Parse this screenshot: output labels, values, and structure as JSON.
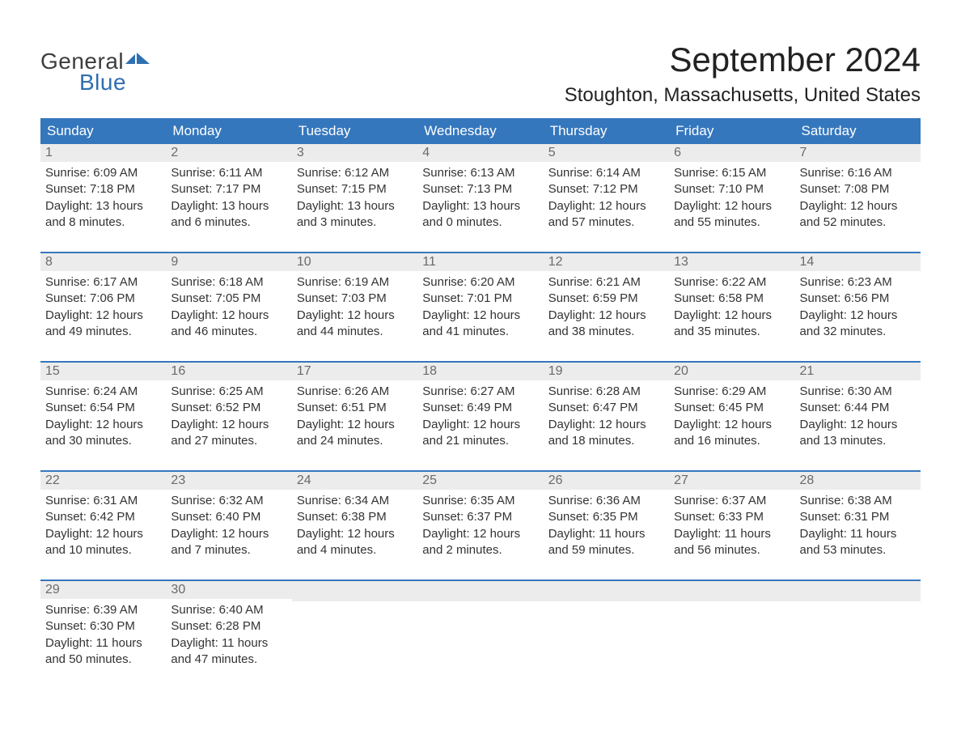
{
  "logo": {
    "word1": "General",
    "word2": "Blue"
  },
  "title": "September 2024",
  "location": "Stoughton, Massachusetts, United States",
  "colors": {
    "header_bg": "#3577bd",
    "header_text": "#ffffff",
    "daynum_bg": "#ececec",
    "daynum_text": "#6a6a6a",
    "body_text": "#333333",
    "logo_gray": "#3d3d3d",
    "logo_blue": "#2f6fb0",
    "page_bg": "#ffffff"
  },
  "daysOfWeek": [
    "Sunday",
    "Monday",
    "Tuesday",
    "Wednesday",
    "Thursday",
    "Friday",
    "Saturday"
  ],
  "startWeekday": 0,
  "cells": [
    {
      "n": "1",
      "sunrise": "Sunrise: 6:09 AM",
      "sunset": "Sunset: 7:18 PM",
      "d1": "Daylight: 13 hours",
      "d2": "and 8 minutes."
    },
    {
      "n": "2",
      "sunrise": "Sunrise: 6:11 AM",
      "sunset": "Sunset: 7:17 PM",
      "d1": "Daylight: 13 hours",
      "d2": "and 6 minutes."
    },
    {
      "n": "3",
      "sunrise": "Sunrise: 6:12 AM",
      "sunset": "Sunset: 7:15 PM",
      "d1": "Daylight: 13 hours",
      "d2": "and 3 minutes."
    },
    {
      "n": "4",
      "sunrise": "Sunrise: 6:13 AM",
      "sunset": "Sunset: 7:13 PM",
      "d1": "Daylight: 13 hours",
      "d2": "and 0 minutes."
    },
    {
      "n": "5",
      "sunrise": "Sunrise: 6:14 AM",
      "sunset": "Sunset: 7:12 PM",
      "d1": "Daylight: 12 hours",
      "d2": "and 57 minutes."
    },
    {
      "n": "6",
      "sunrise": "Sunrise: 6:15 AM",
      "sunset": "Sunset: 7:10 PM",
      "d1": "Daylight: 12 hours",
      "d2": "and 55 minutes."
    },
    {
      "n": "7",
      "sunrise": "Sunrise: 6:16 AM",
      "sunset": "Sunset: 7:08 PM",
      "d1": "Daylight: 12 hours",
      "d2": "and 52 minutes."
    },
    {
      "n": "8",
      "sunrise": "Sunrise: 6:17 AM",
      "sunset": "Sunset: 7:06 PM",
      "d1": "Daylight: 12 hours",
      "d2": "and 49 minutes."
    },
    {
      "n": "9",
      "sunrise": "Sunrise: 6:18 AM",
      "sunset": "Sunset: 7:05 PM",
      "d1": "Daylight: 12 hours",
      "d2": "and 46 minutes."
    },
    {
      "n": "10",
      "sunrise": "Sunrise: 6:19 AM",
      "sunset": "Sunset: 7:03 PM",
      "d1": "Daylight: 12 hours",
      "d2": "and 44 minutes."
    },
    {
      "n": "11",
      "sunrise": "Sunrise: 6:20 AM",
      "sunset": "Sunset: 7:01 PM",
      "d1": "Daylight: 12 hours",
      "d2": "and 41 minutes."
    },
    {
      "n": "12",
      "sunrise": "Sunrise: 6:21 AM",
      "sunset": "Sunset: 6:59 PM",
      "d1": "Daylight: 12 hours",
      "d2": "and 38 minutes."
    },
    {
      "n": "13",
      "sunrise": "Sunrise: 6:22 AM",
      "sunset": "Sunset: 6:58 PM",
      "d1": "Daylight: 12 hours",
      "d2": "and 35 minutes."
    },
    {
      "n": "14",
      "sunrise": "Sunrise: 6:23 AM",
      "sunset": "Sunset: 6:56 PM",
      "d1": "Daylight: 12 hours",
      "d2": "and 32 minutes."
    },
    {
      "n": "15",
      "sunrise": "Sunrise: 6:24 AM",
      "sunset": "Sunset: 6:54 PM",
      "d1": "Daylight: 12 hours",
      "d2": "and 30 minutes."
    },
    {
      "n": "16",
      "sunrise": "Sunrise: 6:25 AM",
      "sunset": "Sunset: 6:52 PM",
      "d1": "Daylight: 12 hours",
      "d2": "and 27 minutes."
    },
    {
      "n": "17",
      "sunrise": "Sunrise: 6:26 AM",
      "sunset": "Sunset: 6:51 PM",
      "d1": "Daylight: 12 hours",
      "d2": "and 24 minutes."
    },
    {
      "n": "18",
      "sunrise": "Sunrise: 6:27 AM",
      "sunset": "Sunset: 6:49 PM",
      "d1": "Daylight: 12 hours",
      "d2": "and 21 minutes."
    },
    {
      "n": "19",
      "sunrise": "Sunrise: 6:28 AM",
      "sunset": "Sunset: 6:47 PM",
      "d1": "Daylight: 12 hours",
      "d2": "and 18 minutes."
    },
    {
      "n": "20",
      "sunrise": "Sunrise: 6:29 AM",
      "sunset": "Sunset: 6:45 PM",
      "d1": "Daylight: 12 hours",
      "d2": "and 16 minutes."
    },
    {
      "n": "21",
      "sunrise": "Sunrise: 6:30 AM",
      "sunset": "Sunset: 6:44 PM",
      "d1": "Daylight: 12 hours",
      "d2": "and 13 minutes."
    },
    {
      "n": "22",
      "sunrise": "Sunrise: 6:31 AM",
      "sunset": "Sunset: 6:42 PM",
      "d1": "Daylight: 12 hours",
      "d2": "and 10 minutes."
    },
    {
      "n": "23",
      "sunrise": "Sunrise: 6:32 AM",
      "sunset": "Sunset: 6:40 PM",
      "d1": "Daylight: 12 hours",
      "d2": "and 7 minutes."
    },
    {
      "n": "24",
      "sunrise": "Sunrise: 6:34 AM",
      "sunset": "Sunset: 6:38 PM",
      "d1": "Daylight: 12 hours",
      "d2": "and 4 minutes."
    },
    {
      "n": "25",
      "sunrise": "Sunrise: 6:35 AM",
      "sunset": "Sunset: 6:37 PM",
      "d1": "Daylight: 12 hours",
      "d2": "and 2 minutes."
    },
    {
      "n": "26",
      "sunrise": "Sunrise: 6:36 AM",
      "sunset": "Sunset: 6:35 PM",
      "d1": "Daylight: 11 hours",
      "d2": "and 59 minutes."
    },
    {
      "n": "27",
      "sunrise": "Sunrise: 6:37 AM",
      "sunset": "Sunset: 6:33 PM",
      "d1": "Daylight: 11 hours",
      "d2": "and 56 minutes."
    },
    {
      "n": "28",
      "sunrise": "Sunrise: 6:38 AM",
      "sunset": "Sunset: 6:31 PM",
      "d1": "Daylight: 11 hours",
      "d2": "and 53 minutes."
    },
    {
      "n": "29",
      "sunrise": "Sunrise: 6:39 AM",
      "sunset": "Sunset: 6:30 PM",
      "d1": "Daylight: 11 hours",
      "d2": "and 50 minutes."
    },
    {
      "n": "30",
      "sunrise": "Sunrise: 6:40 AM",
      "sunset": "Sunset: 6:28 PM",
      "d1": "Daylight: 11 hours",
      "d2": "and 47 minutes."
    }
  ]
}
